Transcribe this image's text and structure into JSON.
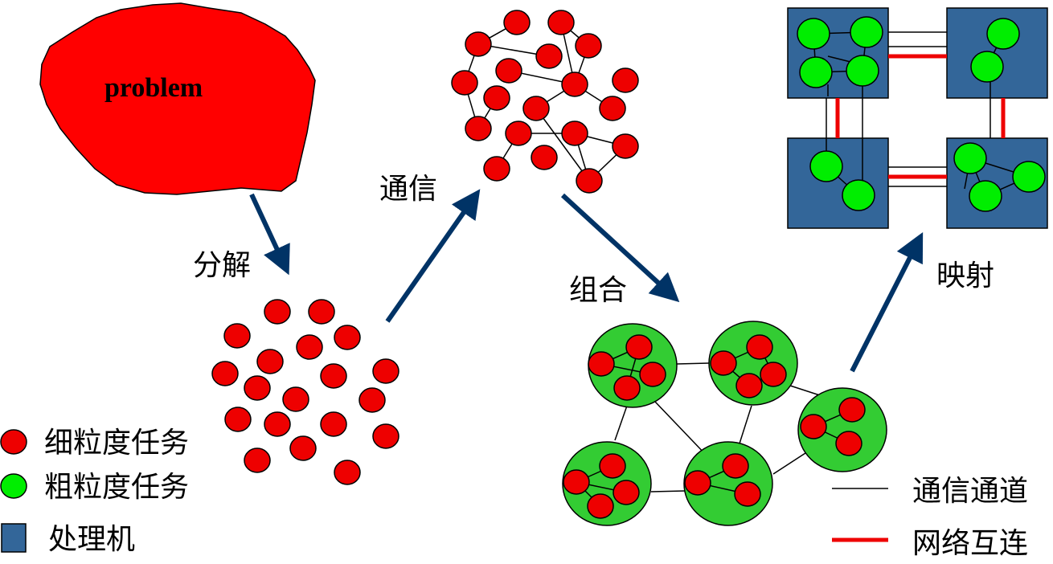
{
  "problem": {
    "label": "problem"
  },
  "steps": {
    "partition": "分解",
    "communication": "通信",
    "agglomeration": "组合",
    "mapping": "映射"
  },
  "legend_left": {
    "fine_task": "细粒度任务",
    "coarse_task": "粗粒度任务",
    "processor": "处理机"
  },
  "legend_right": {
    "channel": "通信通道",
    "interconnect": "网络互连"
  },
  "colors": {
    "fine_task": "#ee0000",
    "coarse_task": "#00ee00",
    "cluster": "#33cc33",
    "processor": "#336699",
    "arrow": "#003366",
    "interconnect": "#ee0000"
  }
}
